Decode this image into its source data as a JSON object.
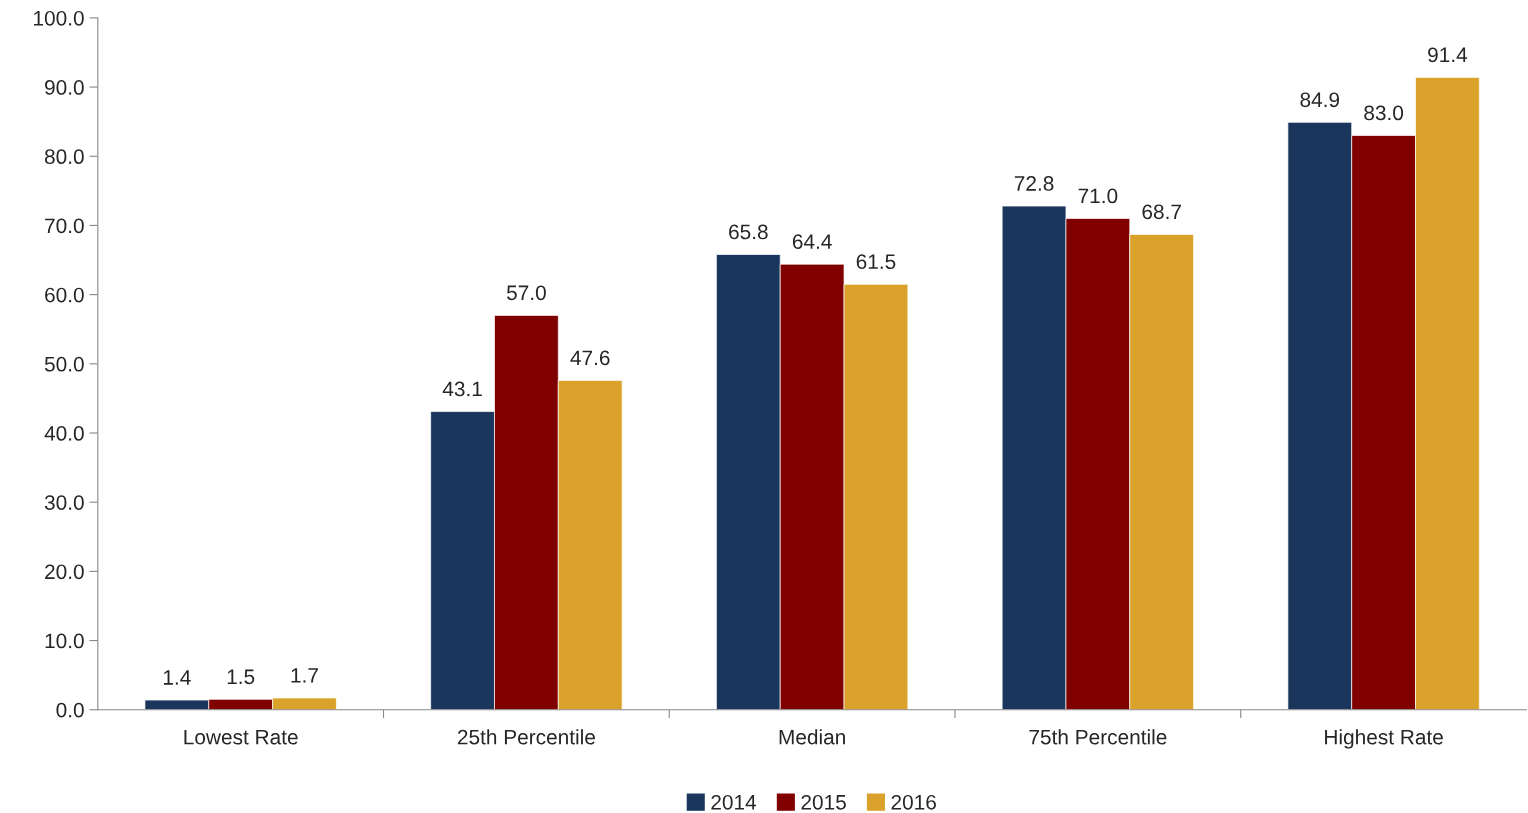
{
  "chart_data": {
    "type": "bar",
    "categories": [
      "Lowest Rate",
      "25th Percentile",
      "Median",
      "75th Percentile",
      "Highest Rate"
    ],
    "series": [
      {
        "name": "2014",
        "color": "#1b365d",
        "values": [
          1.4,
          43.1,
          65.8,
          72.8,
          84.9
        ],
        "value_labels": [
          "1.4",
          "43.1",
          "65.8",
          "72.8",
          "84.9"
        ]
      },
      {
        "name": "2015",
        "color": "#800000",
        "values": [
          1.5,
          57.0,
          64.4,
          71.0,
          83.0
        ],
        "value_labels": [
          "1.5",
          "57.0",
          "64.4",
          "71.0",
          "83.0"
        ]
      },
      {
        "name": "2016",
        "color": "#daa22a",
        "values": [
          1.7,
          47.6,
          61.5,
          68.7,
          91.4
        ],
        "value_labels": [
          "1.7",
          "47.6",
          "61.5",
          "68.7",
          "91.4"
        ]
      }
    ],
    "ylim": [
      0,
      100
    ],
    "yticks": [
      {
        "value": 0,
        "label": "0.0"
      },
      {
        "value": 10,
        "label": "10.0"
      },
      {
        "value": 20,
        "label": "20.0"
      },
      {
        "value": 30,
        "label": "30.0"
      },
      {
        "value": 40,
        "label": "40.0"
      },
      {
        "value": 50,
        "label": "50.0"
      },
      {
        "value": 60,
        "label": "60.0"
      },
      {
        "value": 70,
        "label": "70.0"
      },
      {
        "value": 80,
        "label": "80.0"
      },
      {
        "value": 90,
        "label": "90.0"
      },
      {
        "value": 100,
        "label": "100.0"
      }
    ],
    "grid": false,
    "legend": "bottom"
  }
}
